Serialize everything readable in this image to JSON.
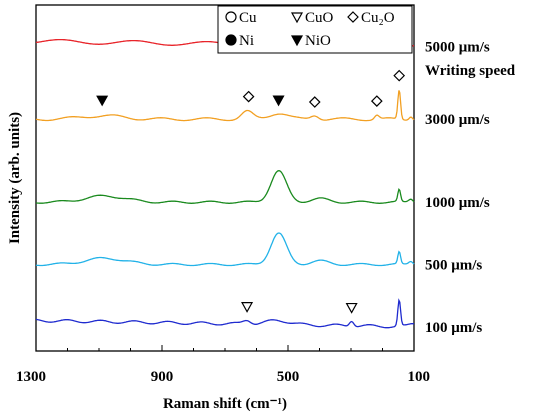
{
  "chart_data": {
    "type": "line",
    "xlabel": "Raman shift (cm⁻¹)",
    "ylabel": "Intensity (arb. units)",
    "xlim": [
      1300,
      100
    ],
    "x_reversed": true,
    "x_ticks": [
      "1300",
      "900",
      "500",
      "100"
    ],
    "legend": [
      {
        "symbol": "open-circle",
        "label": "Cu"
      },
      {
        "symbol": "open-triangle-down",
        "label": "CuO"
      },
      {
        "symbol": "open-diamond",
        "label": "Cu₂O"
      },
      {
        "symbol": "filled-circle",
        "label": "Ni"
      },
      {
        "symbol": "filled-triangle-down",
        "label": "NiO"
      }
    ],
    "series_header": "Writing speed",
    "series": [
      {
        "name": "5000 μm/s",
        "color": "#e8242a",
        "offset": 0.88,
        "shape": "flat"
      },
      {
        "name": "3000 μm/s",
        "color": "#f2a023",
        "offset": 0.67,
        "shape": "cu2o"
      },
      {
        "name": "1000 μm/s",
        "color": "#1a8a1e",
        "offset": 0.43,
        "shape": "nio"
      },
      {
        "name": "500 μm/s",
        "color": "#22b2e8",
        "offset": 0.25,
        "shape": "nio"
      },
      {
        "name": "100 μm/s",
        "color": "#1f2bcf",
        "offset": 0.07,
        "shape": "cuo"
      }
    ],
    "markers": [
      {
        "series": "3000 μm/s",
        "x": 1090,
        "symbol": "filled-triangle-down"
      },
      {
        "series": "3000 μm/s",
        "x": 625,
        "symbol": "open-diamond"
      },
      {
        "series": "3000 μm/s",
        "x": 530,
        "symbol": "filled-triangle-down"
      },
      {
        "series": "3000 μm/s",
        "x": 415,
        "symbol": "open-diamond"
      },
      {
        "series": "3000 μm/s",
        "x": 218,
        "symbol": "open-diamond"
      },
      {
        "series": "3000 μm/s",
        "x": 147,
        "symbol": "open-diamond"
      },
      {
        "series": "100 μm/s",
        "x": 630,
        "symbol": "open-triangle-down"
      },
      {
        "series": "100 μm/s",
        "x": 298,
        "symbol": "open-triangle-down"
      }
    ]
  }
}
